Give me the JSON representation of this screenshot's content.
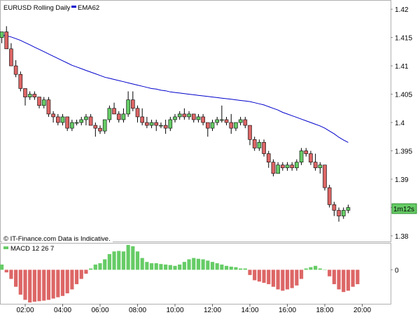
{
  "chart_data": [
    {
      "type": "candlestick",
      "title": "EURUSD Rolling Daily",
      "legend": [
        {
          "name": "EMA62",
          "color": "#0000cc"
        }
      ],
      "ylim": [
        1.379,
        1.4215
      ],
      "yticks": [
        1.38,
        1.385,
        1.39,
        1.395,
        1.4,
        1.405,
        1.41,
        1.415,
        1.42
      ],
      "ytick_labels": [
        "1.38",
        "1.385",
        "1.39",
        "1.395",
        "1.4",
        "1.405",
        "1.41",
        "1.415",
        "1.42"
      ],
      "x_start_hour": 0.25,
      "x_step_hours": 0.25,
      "colors": {
        "up": "#66cc66",
        "down": "#dd6666",
        "wick": "#000000"
      },
      "candles": [
        [
          1.4135,
          1.415,
          1.4125,
          1.4145
        ],
        [
          1.4145,
          1.416,
          1.414,
          1.415
        ],
        [
          1.415,
          1.416,
          1.414,
          1.416
        ],
        [
          1.416,
          1.417,
          1.413,
          1.413
        ],
        [
          1.413,
          1.414,
          1.41,
          1.41
        ],
        [
          1.41,
          1.411,
          1.408,
          1.4085
        ],
        [
          1.4085,
          1.409,
          1.4055,
          1.406
        ],
        [
          1.406,
          1.406,
          1.403,
          1.4045
        ],
        [
          1.4045,
          1.4055,
          1.404,
          1.405
        ],
        [
          1.405,
          1.4055,
          1.404,
          1.4045
        ],
        [
          1.4045,
          1.4045,
          1.4025,
          1.403
        ],
        [
          1.403,
          1.4045,
          1.4025,
          1.404
        ],
        [
          1.404,
          1.4045,
          1.401,
          1.4015
        ],
        [
          1.4015,
          1.402,
          1.4,
          1.401
        ],
        [
          1.401,
          1.4015,
          1.3995,
          1.4
        ],
        [
          1.4,
          1.4015,
          1.3995,
          1.401
        ],
        [
          1.401,
          1.401,
          1.3985,
          1.399
        ],
        [
          1.399,
          1.4005,
          1.3985,
          1.4
        ],
        [
          1.4,
          1.4005,
          1.3995,
          1.4
        ],
        [
          1.4,
          1.401,
          1.3995,
          1.4005
        ],
        [
          1.4005,
          1.4015,
          1.3995,
          1.401
        ],
        [
          1.401,
          1.4015,
          1.3995,
          1.3995
        ],
        [
          1.3995,
          1.4,
          1.3975,
          1.399
        ],
        [
          1.399,
          1.3995,
          1.398,
          1.3985
        ],
        [
          1.3985,
          1.4005,
          1.398,
          1.4005
        ],
        [
          1.4005,
          1.403,
          1.4,
          1.4025
        ],
        [
          1.4025,
          1.4035,
          1.4015,
          1.4015
        ],
        [
          1.4015,
          1.402,
          1.4,
          1.4005
        ],
        [
          1.4005,
          1.4025,
          1.4,
          1.4015
        ],
        [
          1.4015,
          1.4055,
          1.401,
          1.404
        ],
        [
          1.404,
          1.4055,
          1.402,
          1.4025
        ],
        [
          1.4025,
          1.403,
          1.4,
          1.401
        ],
        [
          1.401,
          1.4025,
          1.3995,
          1.4
        ],
        [
          1.4,
          1.401,
          1.399,
          1.3995
        ],
        [
          1.3995,
          1.4005,
          1.399,
          1.4
        ],
        [
          1.4,
          1.4005,
          1.3985,
          1.3995
        ],
        [
          1.3995,
          1.4,
          1.399,
          1.3995
        ],
        [
          1.3995,
          1.4005,
          1.398,
          1.399
        ],
        [
          1.399,
          1.401,
          1.3985,
          1.4005
        ],
        [
          1.4005,
          1.4015,
          1.4,
          1.401
        ],
        [
          1.401,
          1.402,
          1.4005,
          1.4015
        ],
        [
          1.4015,
          1.4025,
          1.4005,
          1.401
        ],
        [
          1.401,
          1.402,
          1.4005,
          1.4015
        ],
        [
          1.4015,
          1.4015,
          1.4,
          1.4005
        ],
        [
          1.4005,
          1.4015,
          1.4,
          1.401
        ],
        [
          1.401,
          1.4015,
          1.3995,
          1.4
        ],
        [
          1.4,
          1.4,
          1.3975,
          1.399
        ],
        [
          1.399,
          1.4005,
          1.3985,
          1.4
        ],
        [
          1.4,
          1.401,
          1.3995,
          1.4005
        ],
        [
          1.4005,
          1.403,
          1.4,
          1.4005
        ],
        [
          1.4005,
          1.401,
          1.3995,
          1.4
        ],
        [
          1.4,
          1.4015,
          1.398,
          1.399
        ],
        [
          1.399,
          1.4,
          1.3985,
          1.4
        ],
        [
          1.4,
          1.401,
          1.3995,
          1.4005
        ],
        [
          1.4005,
          1.401,
          1.399,
          1.3995
        ],
        [
          1.3995,
          1.3995,
          1.396,
          1.397
        ],
        [
          1.397,
          1.3975,
          1.395,
          1.3955
        ],
        [
          1.3955,
          1.397,
          1.395,
          1.3965
        ],
        [
          1.3965,
          1.397,
          1.394,
          1.3945
        ],
        [
          1.3945,
          1.395,
          1.392,
          1.393
        ],
        [
          1.393,
          1.3935,
          1.3905,
          1.391
        ],
        [
          1.391,
          1.393,
          1.391,
          1.3925
        ],
        [
          1.3925,
          1.393,
          1.3915,
          1.392
        ],
        [
          1.392,
          1.393,
          1.3915,
          1.3925
        ],
        [
          1.3925,
          1.393,
          1.3915,
          1.392
        ],
        [
          1.392,
          1.3935,
          1.3915,
          1.393
        ],
        [
          1.393,
          1.3955,
          1.3925,
          1.395
        ],
        [
          1.395,
          1.3955,
          1.394,
          1.3945
        ],
        [
          1.3945,
          1.395,
          1.3925,
          1.393
        ],
        [
          1.393,
          1.3945,
          1.3915,
          1.392
        ],
        [
          1.392,
          1.393,
          1.391,
          1.3925
        ],
        [
          1.3925,
          1.3925,
          1.388,
          1.3885
        ],
        [
          1.3885,
          1.389,
          1.385,
          1.3855
        ],
        [
          1.3855,
          1.386,
          1.3835,
          1.3845
        ],
        [
          1.3845,
          1.385,
          1.3825,
          1.3835
        ],
        [
          1.3835,
          1.385,
          1.383,
          1.3845
        ],
        [
          1.3845,
          1.3855,
          1.384,
          1.385
        ]
      ],
      "ema": [
        1.4155,
        1.4155,
        1.4154,
        1.4153,
        1.4151,
        1.4148,
        1.4145,
        1.4141,
        1.4137,
        1.4133,
        1.4129,
        1.4125,
        1.4121,
        1.4117,
        1.4113,
        1.4109,
        1.4105,
        1.4101,
        1.4098,
        1.4095,
        1.4092,
        1.4089,
        1.4086,
        1.4083,
        1.408,
        1.4078,
        1.4076,
        1.4074,
        1.4072,
        1.407,
        1.4068,
        1.4066,
        1.4064,
        1.4062,
        1.406,
        1.4059,
        1.4057,
        1.4056,
        1.4054,
        1.4053,
        1.4052,
        1.4051,
        1.405,
        1.4049,
        1.4048,
        1.4047,
        1.4046,
        1.4045,
        1.4044,
        1.4043,
        1.4042,
        1.4041,
        1.404,
        1.4039,
        1.4038,
        1.4037,
        1.4035,
        1.4033,
        1.4031,
        1.4028,
        1.4025,
        1.4022,
        1.4018,
        1.4015,
        1.4012,
        1.4009,
        1.4006,
        1.4003,
        1.4,
        1.3997,
        1.3994,
        1.399,
        1.3985,
        1.398,
        1.3974,
        1.3969,
        1.3965
      ],
      "badge": {
        "label": "1m12s",
        "value": 1.3848
      }
    },
    {
      "type": "bar",
      "title": "MACD 12 26 7",
      "ylim": [
        -0.0013,
        0.001
      ],
      "yticks": [
        0
      ],
      "ytick_labels": [
        "0"
      ],
      "x_start_hour": 0.25,
      "x_step_hours": 0.25,
      "colors": {
        "positive": "#66cc66",
        "negative": "#dd6666"
      },
      "values": [
        -5e-05,
        0.00015,
        0.0002,
        -0.0001,
        -0.00035,
        -0.00065,
        -0.00095,
        -0.00115,
        -0.00125,
        -0.00122,
        -0.0012,
        -0.00118,
        -0.00115,
        -0.0011,
        -0.00105,
        -0.001,
        -0.0009,
        -0.00075,
        -0.00055,
        -0.00035,
        -0.00015,
        5e-05,
        0.0002,
        0.00025,
        0.0004,
        0.0006,
        0.0007,
        0.00072,
        0.0007,
        0.00095,
        0.0009,
        0.0007,
        0.00045,
        0.0003,
        0.00025,
        0.00025,
        0.00022,
        0.0002,
        0.00018,
        0.00015,
        0.0002,
        0.0003,
        0.0004,
        0.00045,
        0.00042,
        0.0004,
        0.00035,
        0.0003,
        0.00025,
        0.0002,
        0.00015,
        0.00012,
        0.0001,
        5e-05,
        5e-05,
        -0.0002,
        -0.0004,
        -0.00045,
        -0.0005,
        -0.00055,
        -0.00065,
        -0.00075,
        -0.0008,
        -0.00075,
        -0.0007,
        -0.0006,
        -0.00035,
        5e-05,
        0.0001,
        0.00015,
        5e-05,
        0.0,
        -0.00025,
        -0.00055,
        -0.00075,
        -0.00085,
        -0.0008,
        -0.00065,
        -0.00055
      ],
      "x_ticks": [
        2,
        4,
        6,
        8,
        10,
        12,
        14,
        16,
        18,
        20
      ],
      "x_tick_labels": [
        "02:00",
        "04:00",
        "06:00",
        "08:00",
        "10:00",
        "12:00",
        "14:00",
        "16:00",
        "18:00",
        "20:00"
      ]
    }
  ],
  "footer": {
    "disclaimer": "© IT-Finance.com Data is Indicative."
  }
}
